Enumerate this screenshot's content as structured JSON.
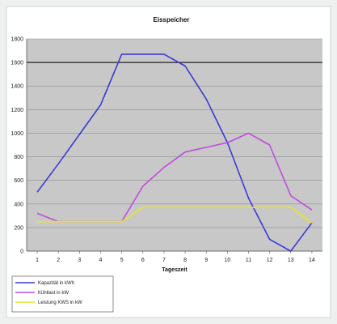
{
  "chart_data": {
    "type": "line",
    "title": "Eisspeicher",
    "xlabel": "Tageszeit",
    "ylabel": "",
    "categories": [
      "1",
      "2",
      "3",
      "4",
      "5",
      "6",
      "7",
      "8",
      "9",
      "10",
      "11",
      "12",
      "13",
      "14"
    ],
    "ylim": [
      0,
      1800
    ],
    "yticks": [
      0,
      200,
      400,
      600,
      800,
      1000,
      1200,
      1400,
      1600,
      1800
    ],
    "highlight_gridline": 1600,
    "grid": true,
    "legend_position": "bottom-left",
    "series": [
      {
        "name": "Kapazität in kWh",
        "color": "#3a3ad6",
        "values": [
          500,
          740,
          990,
          1240,
          1670,
          1670,
          1670,
          1570,
          1290,
          920,
          450,
          100,
          0,
          240
        ]
      },
      {
        "name": "Kühllast in kW",
        "color": "#c04cdc",
        "values": [
          320,
          250,
          250,
          250,
          250,
          550,
          710,
          840,
          880,
          920,
          1000,
          900,
          470,
          350
        ]
      },
      {
        "name": "Leistung KWS in kW",
        "color": "#e6e61e",
        "values": [
          250,
          250,
          250,
          250,
          250,
          370,
          370,
          370,
          370,
          370,
          370,
          370,
          370,
          240
        ]
      }
    ]
  }
}
